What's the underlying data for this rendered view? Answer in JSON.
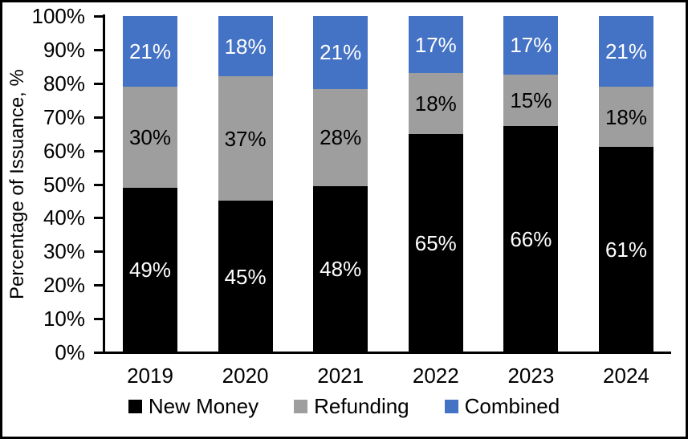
{
  "figure": {
    "background": "#FFFFFF",
    "border_color": "#000000",
    "axis_color": "#000000"
  },
  "chart_data": {
    "type": "bar",
    "stacked": true,
    "title": "",
    "xlabel": "",
    "ylabel": "Percentage of Issuance, %",
    "ylim": [
      0,
      100
    ],
    "yticks": [
      "0%",
      "10%",
      "20%",
      "30%",
      "40%",
      "50%",
      "60%",
      "70%",
      "80%",
      "90%",
      "100%"
    ],
    "grid": false,
    "legend_position": "bottom",
    "categories": [
      "2019",
      "2020",
      "2021",
      "2022",
      "2023",
      "2024"
    ],
    "series": [
      {
        "name": "New Money",
        "color": "#000000",
        "label_color": "#FFFFFF",
        "values": [
          49,
          45,
          48,
          65,
          66,
          61
        ],
        "labels": [
          "49%",
          "45%",
          "48%",
          "65%",
          "66%",
          "61%"
        ]
      },
      {
        "name": "Refunding",
        "color": "#9E9E9E",
        "label_color": "#000000",
        "values": [
          30,
          37,
          28,
          18,
          15,
          18
        ],
        "labels": [
          "30%",
          "37%",
          "28%",
          "18%",
          "15%",
          "18%"
        ]
      },
      {
        "name": "Combined",
        "color": "#4472C4",
        "label_color": "#FFFFFF",
        "values": [
          21,
          18,
          21,
          17,
          17,
          21
        ],
        "labels": [
          "21%",
          "18%",
          "21%",
          "17%",
          "17%",
          "21%"
        ]
      }
    ]
  }
}
